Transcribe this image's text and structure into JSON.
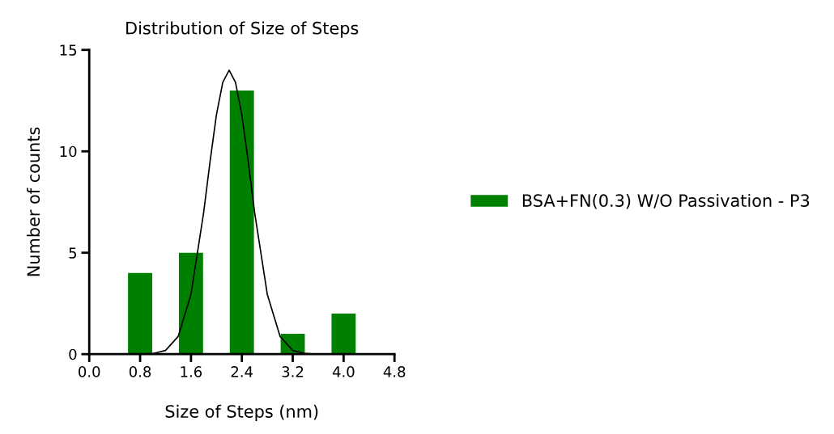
{
  "chart_data": {
    "type": "bar",
    "title": "Distribution of Size of Steps",
    "xlabel": "Size of Steps (nm)",
    "ylabel": "Number of counts",
    "x": [
      0.8,
      1.6,
      2.4,
      3.2,
      4.0
    ],
    "series": [
      {
        "name": "BSA+FN(0.3) W/O Passivation - P3",
        "color": "#008000",
        "values": [
          4,
          5,
          13,
          1,
          2
        ]
      },
      {
        "type": "line",
        "color": "#000000",
        "x": [
          0.6,
          0.8,
          1.0,
          1.2,
          1.4,
          1.6,
          1.8,
          1.9,
          2.0,
          2.1,
          2.2,
          2.3,
          2.4,
          2.5,
          2.6,
          2.8,
          3.0,
          3.2,
          3.4,
          3.6
        ],
        "values": [
          0,
          0,
          0.03,
          0.18,
          0.88,
          2.95,
          7.0,
          9.5,
          11.8,
          13.4,
          14,
          13.4,
          11.8,
          9.5,
          7.0,
          2.95,
          0.88,
          0.18,
          0.03,
          0
        ]
      }
    ],
    "xlim": [
      0,
      4.8
    ],
    "xticks": [
      {
        "value": 0,
        "label": "0.0"
      },
      0.8,
      1.6,
      2.4,
      3.2,
      {
        "value": 4,
        "label": "4.0"
      },
      4.8
    ],
    "ylim": [
      0,
      15
    ],
    "yticks": [
      0,
      5,
      10,
      15
    ],
    "grid": false,
    "legend": "right"
  }
}
